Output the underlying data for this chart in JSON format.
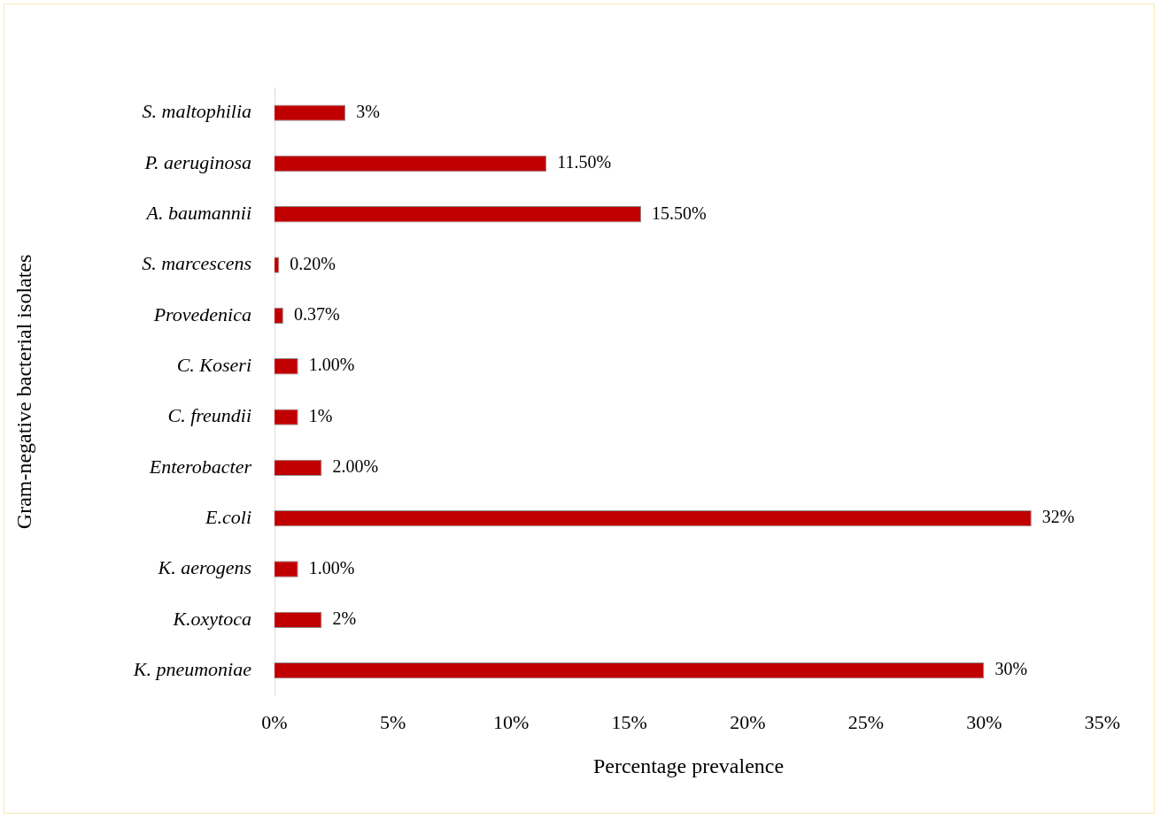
{
  "chart_data": {
    "type": "bar",
    "orientation": "horizontal",
    "xlabel": "Percentage prevalence",
    "ylabel": "Gram-negative bacterial isolates",
    "categories": [
      "S. maltophilia",
      "P. aeruginosa",
      "A. baumannii",
      "S. marcescens",
      "Provedenica",
      "C. Koseri",
      "C. freundii",
      "Enterobacter",
      "E.coli",
      "K. aerogens",
      "K.oxytoca",
      "K. pneumoniae"
    ],
    "values": [
      3,
      11.5,
      15.5,
      0.2,
      0.37,
      1,
      1,
      2,
      32,
      1,
      2,
      30
    ],
    "value_labels": [
      "3%",
      "11.50%",
      "15.50%",
      "0.20%",
      "0.37%",
      "1.00%",
      "1%",
      "2.00%",
      "32%",
      "1.00%",
      "2%",
      "30%"
    ],
    "color": "#c00000",
    "xlim": [
      0,
      35
    ],
    "xticks": [
      {
        "value": 0,
        "label": "0%"
      },
      {
        "value": 5,
        "label": "5%"
      },
      {
        "value": 10,
        "label": "10%"
      },
      {
        "value": 15,
        "label": "15%"
      },
      {
        "value": 20,
        "label": "20%"
      },
      {
        "value": 25,
        "label": "25%"
      },
      {
        "value": 30,
        "label": "30%"
      },
      {
        "value": 35,
        "label": "35%"
      }
    ]
  }
}
